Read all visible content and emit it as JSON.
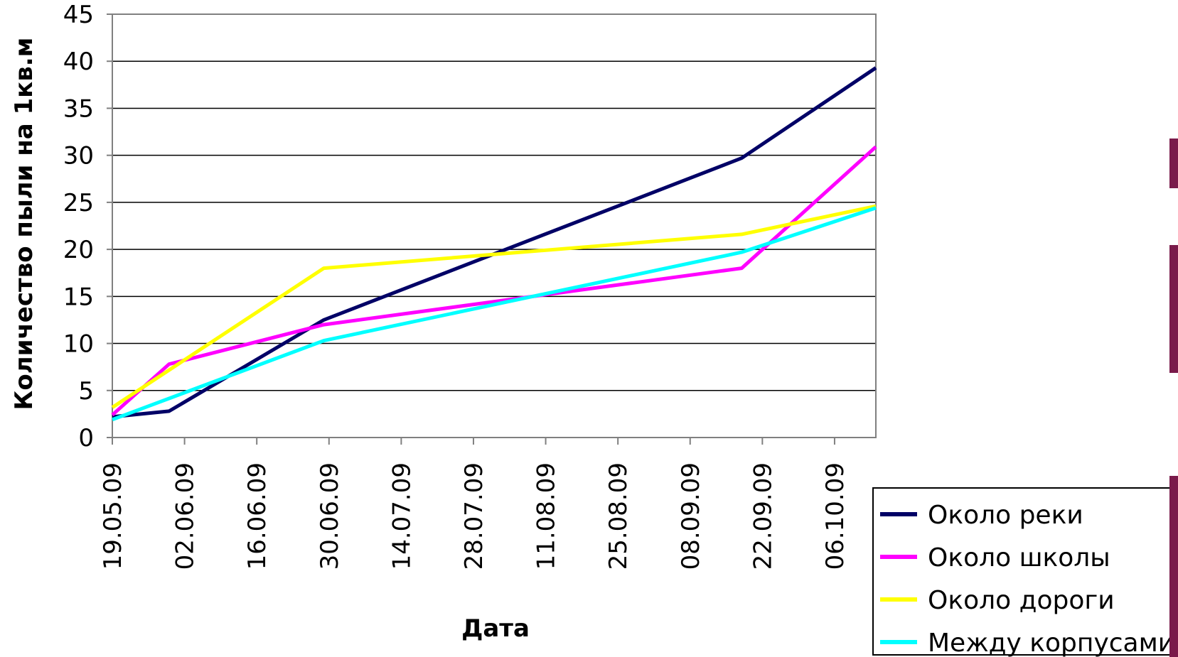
{
  "chart_data": {
    "type": "line",
    "title": "",
    "xlabel": "Дата",
    "ylabel": "Количество пыли на 1кв.м",
    "ylim": [
      0,
      45
    ],
    "yticks": [
      "0",
      "5",
      "10",
      "15",
      "20",
      "25",
      "30",
      "35",
      "40",
      "45"
    ],
    "x_tick_labels": [
      "19.05.09",
      "02.06.09",
      "16.06.09",
      "30.06.09",
      "14.07.09",
      "28.07.09",
      "11.08.09",
      "25.08.09",
      "08.09.09",
      "22.09.09",
      "06.10.09"
    ],
    "xlim": [
      "19.05.09",
      "14.10.09"
    ],
    "grid": "horizontal",
    "legend_position": "bottom-right",
    "series": [
      {
        "name": "Около реки",
        "color": "#000066",
        "points": [
          [
            "19.05.09",
            2.2
          ],
          [
            "30.05.09",
            2.8
          ],
          [
            "29.06.09",
            12.5
          ],
          [
            "18.09.09",
            29.7
          ],
          [
            "14.10.09",
            39.3
          ]
        ]
      },
      {
        "name": "Около школы",
        "color": "#ff00ff",
        "points": [
          [
            "19.05.09",
            2.4
          ],
          [
            "30.05.09",
            7.8
          ],
          [
            "29.06.09",
            12.0
          ],
          [
            "18.09.09",
            18.0
          ],
          [
            "14.10.09",
            30.9
          ]
        ]
      },
      {
        "name": "Около дороги",
        "color": "#ffff00",
        "points": [
          [
            "19.05.09",
            3.2
          ],
          [
            "29.06.09",
            18.0
          ],
          [
            "18.09.09",
            21.6
          ],
          [
            "14.10.09",
            24.6
          ]
        ]
      },
      {
        "name": "Между корпусами",
        "color": "#00ffff",
        "points": [
          [
            "19.05.09",
            1.9
          ],
          [
            "29.06.09",
            10.3
          ],
          [
            "18.09.09",
            19.7
          ],
          [
            "14.10.09",
            24.4
          ]
        ]
      }
    ]
  }
}
